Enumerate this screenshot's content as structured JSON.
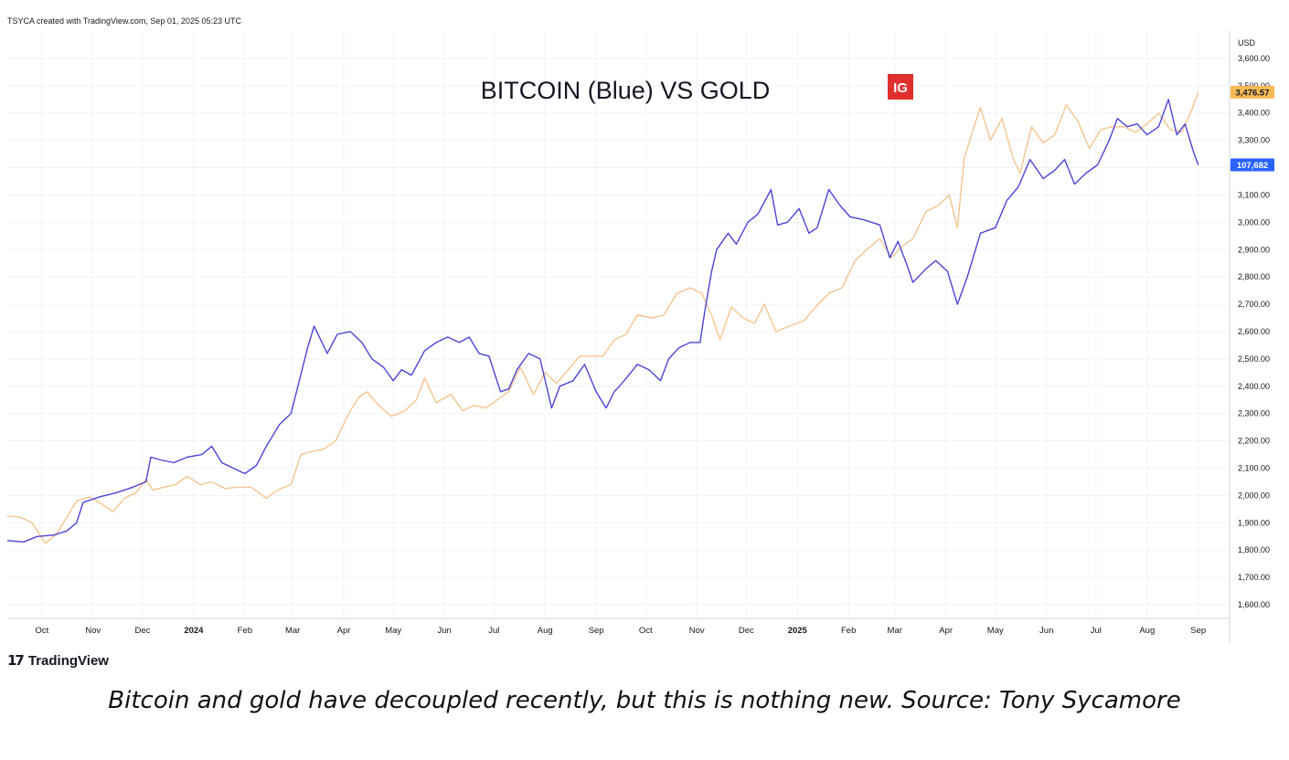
{
  "header": {
    "attribution": "TSYCA created with TradingView.com, Sep 01, 2025 05:23 UTC"
  },
  "chart_data": {
    "type": "line",
    "title": "BITCOIN (Blue) VS GOLD",
    "badge": "IG",
    "y_axis": {
      "unit_label": "USD",
      "position": "right",
      "range": [
        1550,
        3700
      ],
      "ticks": [
        1600,
        1700,
        1800,
        1900,
        2000,
        2100,
        2200,
        2300,
        2400,
        2500,
        2600,
        2700,
        2800,
        2900,
        3000,
        3100,
        3200,
        3300,
        3400,
        3500,
        3600
      ],
      "tick_labels": [
        "1,600.00",
        "1,700.00",
        "1,800.00",
        "1,900.00",
        "2,000.00",
        "2,100.00",
        "2,200.00",
        "2,300.00",
        "2,400.00",
        "2,500.00",
        "2,600.00",
        "2,700.00",
        "2,800.00",
        "2,900.00",
        "3,000.00",
        "3,100.00",
        "3,200.00",
        "3,300.00",
        "3,400.00",
        "3,500.00",
        "3,600.00"
      ]
    },
    "x_axis": {
      "range": [
        "2023-09-10",
        "2025-09-20"
      ],
      "ticks": [
        {
          "label": "Oct",
          "date": "2023-10-01"
        },
        {
          "label": "Nov",
          "date": "2023-11-01"
        },
        {
          "label": "Dec",
          "date": "2023-12-01"
        },
        {
          "label": "2024",
          "date": "2024-01-01",
          "bold": true
        },
        {
          "label": "Feb",
          "date": "2024-02-01"
        },
        {
          "label": "Mar",
          "date": "2024-03-01"
        },
        {
          "label": "Apr",
          "date": "2024-04-01"
        },
        {
          "label": "May",
          "date": "2024-05-01"
        },
        {
          "label": "Jun",
          "date": "2024-06-01"
        },
        {
          "label": "Jul",
          "date": "2024-07-01"
        },
        {
          "label": "Aug",
          "date": "2024-08-01"
        },
        {
          "label": "Sep",
          "date": "2024-09-01"
        },
        {
          "label": "Oct",
          "date": "2024-10-01"
        },
        {
          "label": "Nov",
          "date": "2024-11-01"
        },
        {
          "label": "Dec",
          "date": "2024-12-01"
        },
        {
          "label": "2025",
          "date": "2025-01-01",
          "bold": true
        },
        {
          "label": "Feb",
          "date": "2025-02-01"
        },
        {
          "label": "Mar",
          "date": "2025-03-01"
        },
        {
          "label": "Apr",
          "date": "2025-04-01"
        },
        {
          "label": "May",
          "date": "2025-05-01"
        },
        {
          "label": "Jun",
          "date": "2025-06-01"
        },
        {
          "label": "Jul",
          "date": "2025-07-01"
        },
        {
          "label": "Aug",
          "date": "2025-08-01"
        },
        {
          "label": "Sep",
          "date": "2025-09-01"
        }
      ]
    },
    "grid": true,
    "series": [
      {
        "name": "BITCOIN",
        "color": "#4b45d6",
        "last_value_label": "107,682",
        "last_value_position": 3210,
        "points": [
          [
            "2023-09-10",
            1835
          ],
          [
            "2023-09-20",
            1830
          ],
          [
            "2023-09-28",
            1850
          ],
          [
            "2023-10-08",
            1855
          ],
          [
            "2023-10-16",
            1870
          ],
          [
            "2023-10-22",
            1900
          ],
          [
            "2023-10-26",
            1975
          ],
          [
            "2023-11-05",
            1995
          ],
          [
            "2023-11-15",
            2010
          ],
          [
            "2023-11-25",
            2030
          ],
          [
            "2023-12-03",
            2050
          ],
          [
            "2023-12-06",
            2140
          ],
          [
            "2023-12-12",
            2130
          ],
          [
            "2023-12-20",
            2120
          ],
          [
            "2023-12-28",
            2140
          ],
          [
            "2024-01-06",
            2150
          ],
          [
            "2024-01-12",
            2180
          ],
          [
            "2024-01-18",
            2120
          ],
          [
            "2024-01-25",
            2100
          ],
          [
            "2024-02-01",
            2080
          ],
          [
            "2024-02-08",
            2110
          ],
          [
            "2024-02-14",
            2180
          ],
          [
            "2024-02-22",
            2260
          ],
          [
            "2024-02-29",
            2300
          ],
          [
            "2024-03-05",
            2420
          ],
          [
            "2024-03-10",
            2540
          ],
          [
            "2024-03-14",
            2620
          ],
          [
            "2024-03-18",
            2570
          ],
          [
            "2024-03-22",
            2520
          ],
          [
            "2024-03-28",
            2590
          ],
          [
            "2024-04-05",
            2600
          ],
          [
            "2024-04-12",
            2560
          ],
          [
            "2024-04-18",
            2500
          ],
          [
            "2024-04-25",
            2470
          ],
          [
            "2024-05-01",
            2420
          ],
          [
            "2024-05-06",
            2460
          ],
          [
            "2024-05-12",
            2440
          ],
          [
            "2024-05-20",
            2530
          ],
          [
            "2024-05-27",
            2560
          ],
          [
            "2024-06-03",
            2580
          ],
          [
            "2024-06-10",
            2560
          ],
          [
            "2024-06-16",
            2580
          ],
          [
            "2024-06-22",
            2520
          ],
          [
            "2024-06-28",
            2510
          ],
          [
            "2024-07-05",
            2380
          ],
          [
            "2024-07-10",
            2390
          ],
          [
            "2024-07-15",
            2460
          ],
          [
            "2024-07-22",
            2520
          ],
          [
            "2024-07-29",
            2500
          ],
          [
            "2024-08-05",
            2320
          ],
          [
            "2024-08-10",
            2400
          ],
          [
            "2024-08-18",
            2420
          ],
          [
            "2024-08-25",
            2480
          ],
          [
            "2024-09-01",
            2380
          ],
          [
            "2024-09-07",
            2320
          ],
          [
            "2024-09-12",
            2380
          ],
          [
            "2024-09-18",
            2420
          ],
          [
            "2024-09-26",
            2480
          ],
          [
            "2024-10-03",
            2460
          ],
          [
            "2024-10-10",
            2420
          ],
          [
            "2024-10-15",
            2500
          ],
          [
            "2024-10-21",
            2540
          ],
          [
            "2024-10-28",
            2560
          ],
          [
            "2024-11-03",
            2560
          ],
          [
            "2024-11-06",
            2680
          ],
          [
            "2024-11-10",
            2820
          ],
          [
            "2024-11-13",
            2900
          ],
          [
            "2024-11-20",
            2960
          ],
          [
            "2024-11-25",
            2920
          ],
          [
            "2024-12-02",
            3000
          ],
          [
            "2024-12-08",
            3030
          ],
          [
            "2024-12-16",
            3120
          ],
          [
            "2024-12-20",
            2990
          ],
          [
            "2024-12-26",
            3000
          ],
          [
            "2025-01-02",
            3050
          ],
          [
            "2025-01-08",
            2960
          ],
          [
            "2025-01-13",
            2980
          ],
          [
            "2025-01-20",
            3120
          ],
          [
            "2025-01-27",
            3060
          ],
          [
            "2025-02-02",
            3020
          ],
          [
            "2025-02-10",
            3010
          ],
          [
            "2025-02-20",
            2990
          ],
          [
            "2025-02-26",
            2870
          ],
          [
            "2025-03-03",
            2930
          ],
          [
            "2025-03-08",
            2850
          ],
          [
            "2025-03-12",
            2780
          ],
          [
            "2025-03-20",
            2830
          ],
          [
            "2025-03-26",
            2860
          ],
          [
            "2025-04-02",
            2820
          ],
          [
            "2025-04-08",
            2700
          ],
          [
            "2025-04-14",
            2800
          ],
          [
            "2025-04-22",
            2960
          ],
          [
            "2025-05-01",
            2980
          ],
          [
            "2025-05-08",
            3080
          ],
          [
            "2025-05-15",
            3130
          ],
          [
            "2025-05-22",
            3230
          ],
          [
            "2025-05-30",
            3160
          ],
          [
            "2025-06-06",
            3190
          ],
          [
            "2025-06-12",
            3230
          ],
          [
            "2025-06-18",
            3140
          ],
          [
            "2025-06-25",
            3180
          ],
          [
            "2025-07-02",
            3210
          ],
          [
            "2025-07-09",
            3300
          ],
          [
            "2025-07-14",
            3380
          ],
          [
            "2025-07-20",
            3350
          ],
          [
            "2025-07-26",
            3360
          ],
          [
            "2025-08-01",
            3320
          ],
          [
            "2025-08-08",
            3350
          ],
          [
            "2025-08-14",
            3450
          ],
          [
            "2025-08-19",
            3320
          ],
          [
            "2025-08-24",
            3360
          ],
          [
            "2025-08-29",
            3260
          ],
          [
            "2025-09-01",
            3210
          ]
        ]
      },
      {
        "name": "GOLD",
        "color": "#f5c48e",
        "last_value_label": "3,476.57",
        "last_value_position": 3476.57,
        "points": [
          [
            "2023-09-10",
            1925
          ],
          [
            "2023-09-18",
            1920
          ],
          [
            "2023-09-25",
            1900
          ],
          [
            "2023-10-03",
            1825
          ],
          [
            "2023-10-10",
            1860
          ],
          [
            "2023-10-16",
            1920
          ],
          [
            "2023-10-22",
            1980
          ],
          [
            "2023-10-30",
            1995
          ],
          [
            "2023-11-06",
            1970
          ],
          [
            "2023-11-13",
            1940
          ],
          [
            "2023-11-20",
            1990
          ],
          [
            "2023-11-27",
            2010
          ],
          [
            "2023-12-03",
            2060
          ],
          [
            "2023-12-07",
            2020
          ],
          [
            "2023-12-14",
            2030
          ],
          [
            "2023-12-21",
            2040
          ],
          [
            "2023-12-28",
            2070
          ],
          [
            "2024-01-05",
            2040
          ],
          [
            "2024-01-12",
            2050
          ],
          [
            "2024-01-20",
            2025
          ],
          [
            "2024-01-27",
            2030
          ],
          [
            "2024-02-05",
            2030
          ],
          [
            "2024-02-14",
            1990
          ],
          [
            "2024-02-21",
            2020
          ],
          [
            "2024-02-29",
            2040
          ],
          [
            "2024-03-06",
            2150
          ],
          [
            "2024-03-12",
            2160
          ],
          [
            "2024-03-20",
            2170
          ],
          [
            "2024-03-27",
            2200
          ],
          [
            "2024-04-04",
            2300
          ],
          [
            "2024-04-10",
            2360
          ],
          [
            "2024-04-15",
            2380
          ],
          [
            "2024-04-22",
            2330
          ],
          [
            "2024-04-30",
            2290
          ],
          [
            "2024-05-08",
            2310
          ],
          [
            "2024-05-15",
            2350
          ],
          [
            "2024-05-20",
            2430
          ],
          [
            "2024-05-27",
            2340
          ],
          [
            "2024-06-05",
            2370
          ],
          [
            "2024-06-12",
            2310
          ],
          [
            "2024-06-19",
            2330
          ],
          [
            "2024-06-26",
            2320
          ],
          [
            "2024-07-03",
            2350
          ],
          [
            "2024-07-10",
            2380
          ],
          [
            "2024-07-17",
            2470
          ],
          [
            "2024-07-25",
            2370
          ],
          [
            "2024-08-01",
            2450
          ],
          [
            "2024-08-08",
            2410
          ],
          [
            "2024-08-15",
            2460
          ],
          [
            "2024-08-22",
            2510
          ],
          [
            "2024-08-29",
            2510
          ],
          [
            "2024-09-05",
            2510
          ],
          [
            "2024-09-12",
            2570
          ],
          [
            "2024-09-19",
            2590
          ],
          [
            "2024-09-26",
            2660
          ],
          [
            "2024-10-05",
            2650
          ],
          [
            "2024-10-12",
            2660
          ],
          [
            "2024-10-20",
            2740
          ],
          [
            "2024-10-28",
            2760
          ],
          [
            "2024-11-04",
            2740
          ],
          [
            "2024-11-10",
            2660
          ],
          [
            "2024-11-15",
            2570
          ],
          [
            "2024-11-22",
            2690
          ],
          [
            "2024-11-29",
            2650
          ],
          [
            "2024-12-06",
            2630
          ],
          [
            "2024-12-12",
            2700
          ],
          [
            "2024-12-19",
            2600
          ],
          [
            "2024-12-27",
            2620
          ],
          [
            "2025-01-05",
            2640
          ],
          [
            "2025-01-12",
            2690
          ],
          [
            "2025-01-20",
            2740
          ],
          [
            "2025-01-28",
            2760
          ],
          [
            "2025-02-05",
            2860
          ],
          [
            "2025-02-12",
            2900
          ],
          [
            "2025-02-20",
            2940
          ],
          [
            "2025-02-27",
            2870
          ],
          [
            "2025-03-05",
            2910
          ],
          [
            "2025-03-12",
            2940
          ],
          [
            "2025-03-20",
            3040
          ],
          [
            "2025-03-27",
            3060
          ],
          [
            "2025-04-03",
            3100
          ],
          [
            "2025-04-08",
            2980
          ],
          [
            "2025-04-12",
            3230
          ],
          [
            "2025-04-17",
            3330
          ],
          [
            "2025-04-22",
            3420
          ],
          [
            "2025-04-28",
            3300
          ],
          [
            "2025-05-05",
            3380
          ],
          [
            "2025-05-12",
            3230
          ],
          [
            "2025-05-16",
            3180
          ],
          [
            "2025-05-23",
            3350
          ],
          [
            "2025-05-30",
            3290
          ],
          [
            "2025-06-06",
            3320
          ],
          [
            "2025-06-13",
            3430
          ],
          [
            "2025-06-20",
            3370
          ],
          [
            "2025-06-27",
            3270
          ],
          [
            "2025-07-04",
            3340
          ],
          [
            "2025-07-11",
            3350
          ],
          [
            "2025-07-18",
            3350
          ],
          [
            "2025-07-25",
            3330
          ],
          [
            "2025-08-01",
            3360
          ],
          [
            "2025-08-08",
            3400
          ],
          [
            "2025-08-15",
            3340
          ],
          [
            "2025-08-22",
            3330
          ],
          [
            "2025-08-28",
            3410
          ],
          [
            "2025-09-01",
            3476.57
          ]
        ]
      }
    ]
  },
  "branding": {
    "logo_name": "TradingView"
  },
  "caption": "Bitcoin and gold have decoupled recently, but this is nothing new. Source: Tony Sycamore"
}
